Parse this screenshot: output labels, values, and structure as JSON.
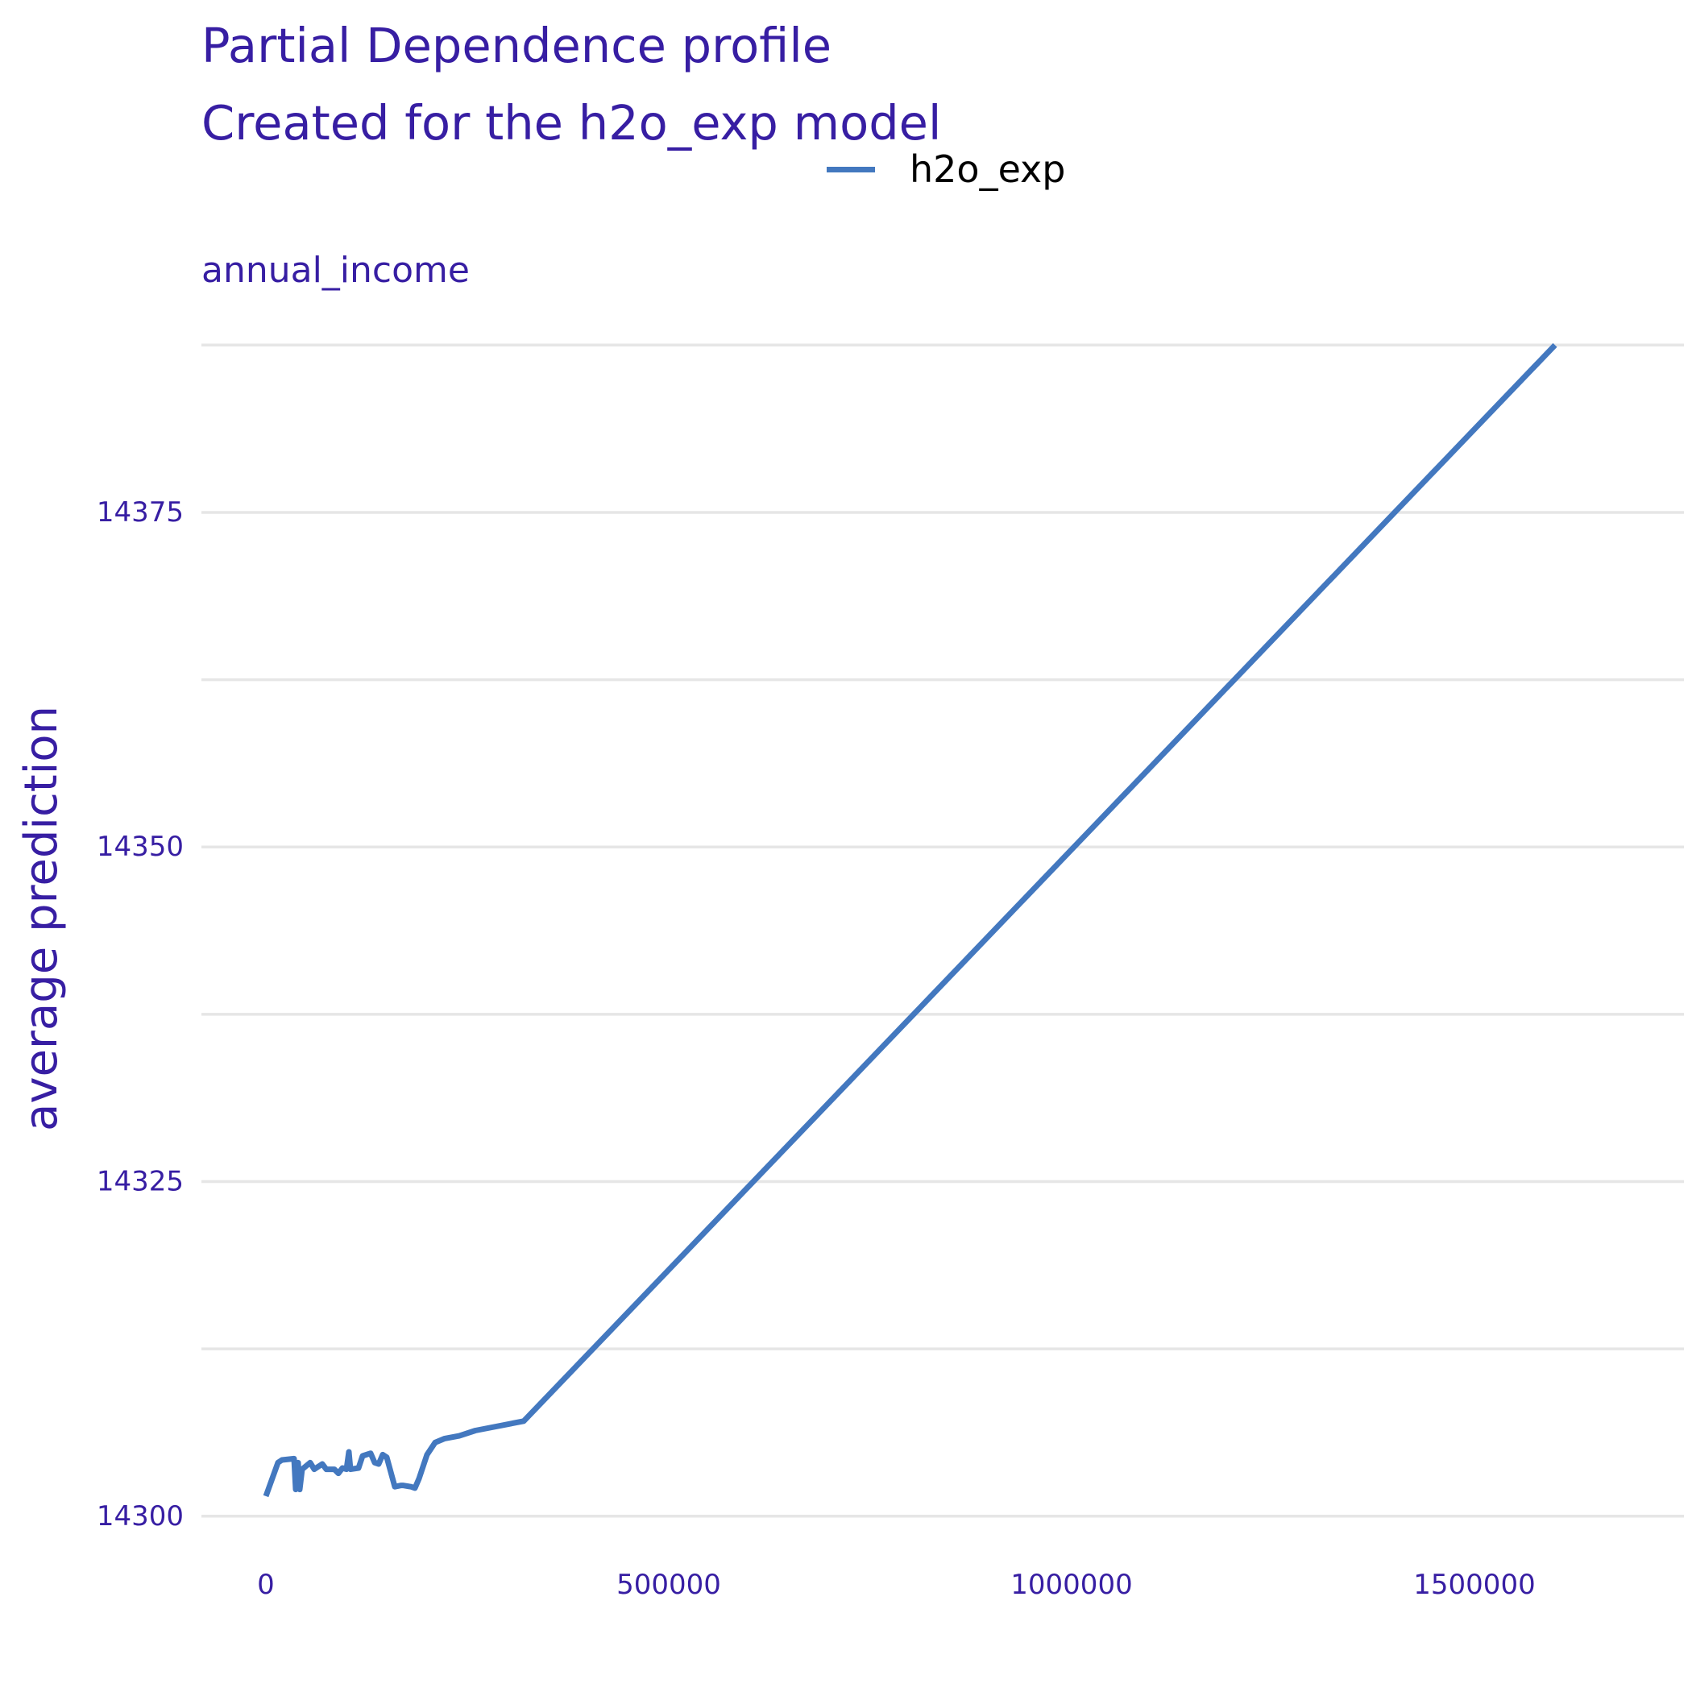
{
  "chart_data": {
    "type": "line",
    "title": "Partial Dependence profile",
    "subtitle": "Created for the h2o_exp model",
    "facet_label": "annual_income",
    "xlabel": "",
    "ylabel": "average prediction",
    "xlim": [
      -80000,
      1760000
    ],
    "ylim": [
      14298,
      14388
    ],
    "x_ticks": [
      0,
      500000,
      1000000,
      1500000
    ],
    "x_tick_labels": [
      "0",
      "500000",
      "1000000",
      "1500000"
    ],
    "y_ticks": [
      14300,
      14325,
      14350,
      14375
    ],
    "y_tick_labels": [
      "14300",
      "14325",
      "14350",
      "14375"
    ],
    "y_minor_gridlines": [
      14312.5,
      14337.5,
      14362.5,
      14387.5
    ],
    "grid": true,
    "legend": {
      "position": "top",
      "entries": [
        "h2o_exp"
      ]
    },
    "colors": {
      "title": "#371ea3",
      "line": "#4378bf",
      "grid": "#e6e6e6"
    },
    "series": [
      {
        "name": "h2o_exp",
        "x": [
          0,
          15000,
          20000,
          35000,
          37000,
          40000,
          42000,
          45000,
          55000,
          60000,
          70000,
          75000,
          80000,
          85000,
          90000,
          95000,
          100000,
          103000,
          105000,
          115000,
          120000,
          130000,
          135000,
          140000,
          145000,
          150000,
          160000,
          168000,
          170000,
          180000,
          185000,
          190000,
          200000,
          210000,
          222000,
          240000,
          260000,
          320000,
          1600000
        ],
        "y": [
          14301.5,
          14304,
          14304.2,
          14304.3,
          14302,
          14304,
          14302,
          14303.5,
          14304,
          14303.5,
          14303.9,
          14303.5,
          14303.5,
          14303.5,
          14303.2,
          14303.6,
          14303.5,
          14304.8,
          14303.5,
          14303.6,
          14304.5,
          14304.7,
          14304,
          14303.9,
          14304.6,
          14304.4,
          14302.2,
          14302.3,
          14302.3,
          14302.2,
          14302.1,
          14302.8,
          14304.6,
          14305.5,
          14305.8,
          14306,
          14306.4,
          14307.1,
          14387.5
        ]
      }
    ]
  }
}
